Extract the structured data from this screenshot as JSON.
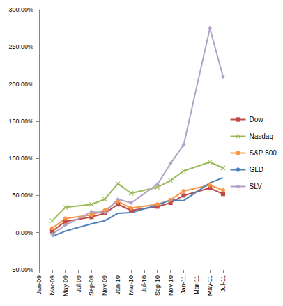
{
  "chart_data": {
    "type": "line",
    "categories": [
      "Jan-09",
      "Mar-09",
      "May-09",
      "Jul-09",
      "Sep-09",
      "Nov-09",
      "Jan-10",
      "Mar-10",
      "Jul-10",
      "Sep-10",
      "Nov-10",
      "Jan-11",
      "Mar-11",
      "May-11",
      "Jul-11"
    ],
    "series": [
      {
        "name": "Dow",
        "color": "#be4b48",
        "marker": "square",
        "values": [
          null,
          2,
          15,
          null,
          21,
          26,
          38,
          30,
          null,
          35,
          40,
          50,
          null,
          60,
          52
        ]
      },
      {
        "name": "Nasdaq",
        "color": "#9bbb59",
        "marker": "x",
        "values": [
          null,
          16,
          34,
          null,
          38,
          45,
          66,
          53,
          null,
          61,
          70,
          83,
          null,
          95,
          87
        ]
      },
      {
        "name": "S&P 500",
        "color": "#f79646",
        "marker": "circle",
        "values": [
          null,
          6,
          19,
          null,
          24,
          30,
          42,
          33,
          null,
          38,
          44,
          56,
          null,
          64,
          57
        ]
      },
      {
        "name": "GLD",
        "color": "#4f81bd",
        "marker": "none",
        "values": [
          null,
          -5,
          2,
          null,
          12,
          16,
          26,
          27,
          null,
          37,
          44,
          43,
          null,
          67,
          74
        ]
      },
      {
        "name": "SLV",
        "color": "#b3a2c7",
        "marker": "diamond",
        "values": [
          null,
          -2,
          10,
          null,
          28,
          27,
          45,
          40,
          null,
          65,
          93,
          118,
          null,
          275,
          210
        ]
      }
    ],
    "ylim": [
      -50,
      300
    ],
    "yticks": [
      {
        "value": -50,
        "label": "-50.00%"
      },
      {
        "value": 0,
        "label": "0.00%"
      },
      {
        "value": 50,
        "label": "50.00%"
      },
      {
        "value": 100,
        "label": "100.00%"
      },
      {
        "value": 150,
        "label": "150.00%"
      },
      {
        "value": 200,
        "label": "200.00%"
      },
      {
        "value": 250,
        "label": "250.00%"
      },
      {
        "value": 300,
        "label": "300.00%"
      }
    ],
    "grid": false,
    "legend": "right"
  }
}
